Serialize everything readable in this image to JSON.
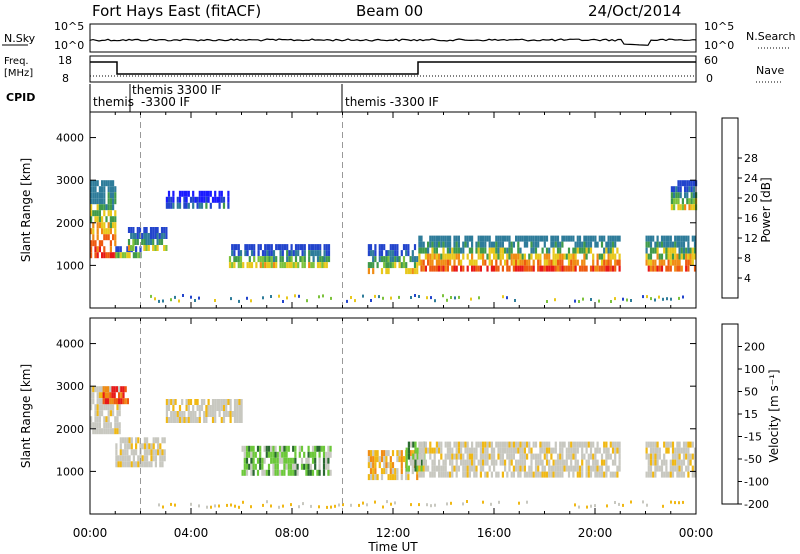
{
  "header": {
    "station": "Fort Hays East (fitACF)",
    "beam": "Beam 00",
    "date": "24/Oct/2014"
  },
  "strip_labels": {
    "nsky": "N.Sky",
    "nsky_ticks": [
      "10^5",
      "10^0"
    ],
    "nsearch": "N.Search",
    "nsearch_ticks": [
      "10^5",
      "10^0"
    ],
    "freq_line1": "Freq.",
    "freq_line2": "[MHz]",
    "freq_ticks": [
      "18",
      "8"
    ],
    "nave": "Nave",
    "nave_ticks": [
      "60",
      "0"
    ],
    "cpid": "CPID"
  },
  "cpid_labels": [
    "themis",
    "themis 3300 IF",
    "-3300 IF",
    "themis -3300 IF"
  ],
  "chart_data": [
    {
      "type": "heatmap",
      "panel": "power",
      "ylabel": "Slant Range [km]",
      "xlabel": "Time UT",
      "xlim": [
        "00:00",
        "24:00"
      ],
      "ylim": [
        0,
        4600
      ],
      "x_ticks": [
        "00:00",
        "04:00",
        "08:00",
        "12:00",
        "16:00",
        "20:00",
        "00:00"
      ],
      "y_ticks": [
        1000,
        2000,
        3000,
        4000
      ],
      "colorbar": {
        "label": "Power [dB]",
        "ticks": [
          4,
          8,
          12,
          16,
          20,
          24,
          28
        ],
        "colors": [
          "#1a1aff",
          "#2244cc",
          "#2e7c9a",
          "#3f9a4a",
          "#7cc23c",
          "#e8c81c",
          "#f08c14",
          "#ee5a10",
          "#e81818"
        ]
      },
      "regions": [
        {
          "t": [
            0.0,
            1.0
          ],
          "range": [
            1300,
            3000
          ],
          "level": "high"
        },
        {
          "t": [
            1.0,
            2.0
          ],
          "range": [
            1250,
            1450
          ],
          "level": "mid"
        },
        {
          "t": [
            1.5,
            3.0
          ],
          "range": [
            1400,
            1900
          ],
          "level": "mid"
        },
        {
          "t": [
            3.0,
            5.5
          ],
          "range": [
            2400,
            2750
          ],
          "level": "low"
        },
        {
          "t": [
            5.5,
            9.5
          ],
          "range": [
            1000,
            1500
          ],
          "level": "mid"
        },
        {
          "t": [
            11.0,
            13.0
          ],
          "range": [
            900,
            1500
          ],
          "level": "mid"
        },
        {
          "t": [
            13.0,
            21.0
          ],
          "range": [
            950,
            1700
          ],
          "level": "high"
        },
        {
          "t": [
            22.0,
            24.0
          ],
          "range": [
            900,
            1700
          ],
          "level": "high"
        },
        {
          "t": [
            23.0,
            24.0
          ],
          "range": [
            2400,
            3000
          ],
          "level": "mid"
        }
      ]
    },
    {
      "type": "heatmap",
      "panel": "velocity",
      "ylabel": "Slant Range [km]",
      "xlabel": "Time UT",
      "xlim": [
        "00:00",
        "24:00"
      ],
      "ylim": [
        0,
        4600
      ],
      "x_ticks": [
        "00:00",
        "04:00",
        "08:00",
        "12:00",
        "16:00",
        "20:00",
        "00:00"
      ],
      "y_ticks": [
        1000,
        2000,
        3000,
        4000
      ],
      "colorbar": {
        "label": "Velocity [m s⁻¹]",
        "ticks": [
          200,
          100,
          50,
          15,
          -15,
          -50,
          -100,
          -200
        ],
        "colors": [
          "#1a2ad8",
          "#2a6a30",
          "#6cc83a",
          "#c8c8c0",
          "#f0b814",
          "#f08c14",
          "#ee5a10",
          "#e81818"
        ]
      },
      "regions": [
        {
          "t": [
            0.0,
            1.2
          ],
          "range": [
            2000,
            3000
          ],
          "level": "slow"
        },
        {
          "t": [
            0.5,
            1.5
          ],
          "range": [
            2700,
            3000
          ],
          "level": "away"
        },
        {
          "t": [
            1.0,
            3.0
          ],
          "range": [
            1200,
            1800
          ],
          "level": "slow"
        },
        {
          "t": [
            3.0,
            6.0
          ],
          "range": [
            2200,
            2700
          ],
          "level": "slow"
        },
        {
          "t": [
            6.0,
            9.5
          ],
          "range": [
            1000,
            1600
          ],
          "level": "toward"
        },
        {
          "t": [
            11.0,
            13.0
          ],
          "range": [
            900,
            1500
          ],
          "level": "away_slow"
        },
        {
          "t": [
            12.5,
            13.2
          ],
          "range": [
            1100,
            1700
          ],
          "level": "toward"
        },
        {
          "t": [
            13.0,
            21.0
          ],
          "range": [
            950,
            1700
          ],
          "level": "slow"
        },
        {
          "t": [
            22.0,
            24.0
          ],
          "range": [
            900,
            1700
          ],
          "level": "slow"
        }
      ]
    }
  ]
}
